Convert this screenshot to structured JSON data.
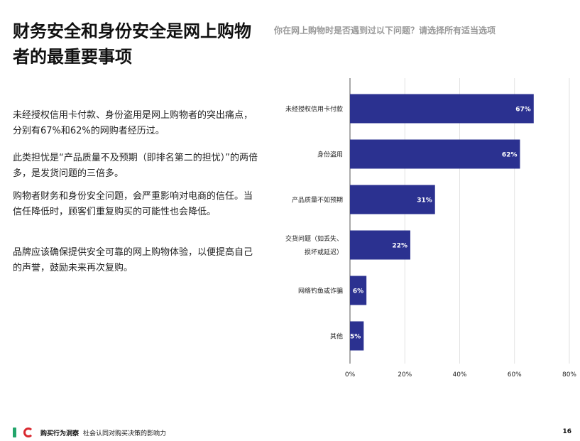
{
  "title": "财务安全和身份安全是网上购物者的最重要事项",
  "paragraphs": [
    "未经授权信用卡付款、身份盗用是网上购物者的突出痛点，分别有67%和62%的网购者经历过。",
    "此类担忧是“产品质量不及预期（即排名第二的担忧）”的两倍多，是发货问题的三倍多。",
    "购物者财务和身份安全问题，会严重影响对电商的信任。当信任降低时，顾客们重复购买的可能性也会降低。",
    "品牌应该确保提供安全可靠的网上购物体验，以便提高自己的声誉，鼓励未来再次复购。"
  ],
  "chart_data": {
    "type": "bar",
    "orientation": "horizontal",
    "title": "你在网上购物时是否遇到过以下问题？请选择所有适当选项",
    "categories": [
      [
        "未经授权信用卡付款"
      ],
      [
        "身份盗用"
      ],
      [
        "产品质量不如预期"
      ],
      [
        "交货问题（如丢失、",
        "损坏或延迟）"
      ],
      [
        "网络钓鱼或诈骗"
      ],
      [
        "其他"
      ]
    ],
    "values": [
      67,
      62,
      31,
      22,
      6,
      5
    ],
    "value_labels": [
      "67%",
      "62%",
      "31%",
      "22%",
      "6%",
      "5%"
    ],
    "xlim": [
      0,
      80
    ],
    "xticks": [
      "0%",
      "20%",
      "40%",
      "60%",
      "80%"
    ],
    "grid": true,
    "bar_color": "#2b3190",
    "label_color": "#ffffff"
  },
  "footer": {
    "brand": "购买行为洞察",
    "subtitle": "社会认同对购买决策的影响力",
    "page": "16"
  },
  "colors": {
    "logo_green": "#23a56b",
    "logo_red": "#d9282f",
    "question_gray": "#9a9a9a"
  }
}
